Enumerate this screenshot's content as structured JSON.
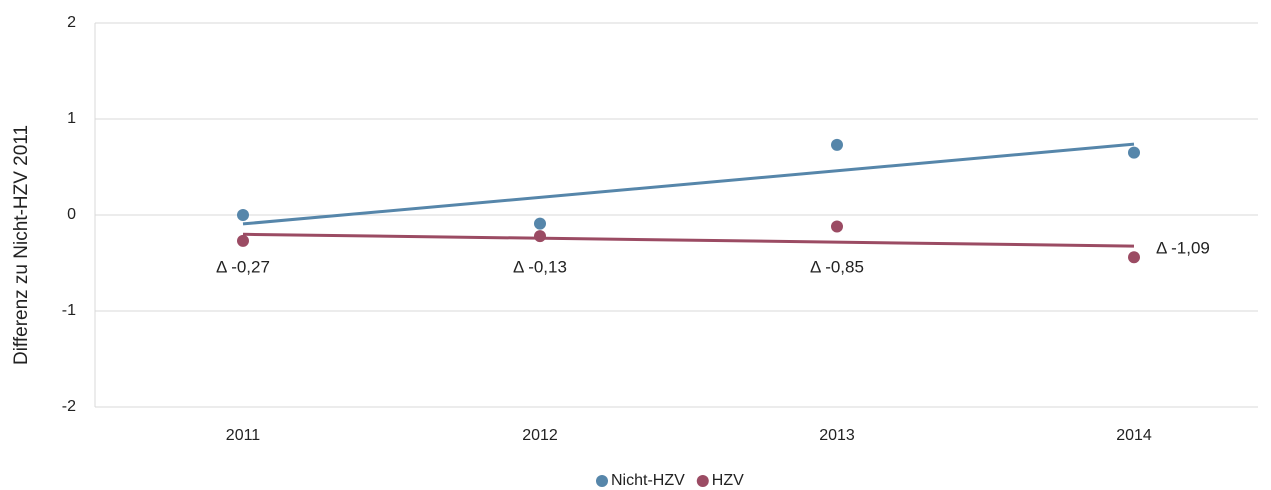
{
  "chart_data": {
    "type": "scatter",
    "y_label": "Differenz zu Nicht-HZV 2011",
    "categories": [
      "2011",
      "2012",
      "2013",
      "2014"
    ],
    "series": [
      {
        "name": "Nicht-HZV",
        "color": "#5686aa",
        "values": [
          0,
          -0.09,
          0.73,
          0.65
        ]
      },
      {
        "name": "HZV",
        "color": "#9b4b63",
        "values": [
          -0.27,
          -0.22,
          -0.12,
          -0.44
        ]
      }
    ],
    "annotations": [
      "Δ -0,27",
      "Δ -0,13",
      "Δ -0,85",
      "Δ -1,09"
    ],
    "ylim": [
      -2,
      2
    ],
    "yticks": [
      -2,
      -1,
      0,
      1,
      2
    ],
    "grid": true,
    "trendline": true,
    "legend": "bottom"
  }
}
